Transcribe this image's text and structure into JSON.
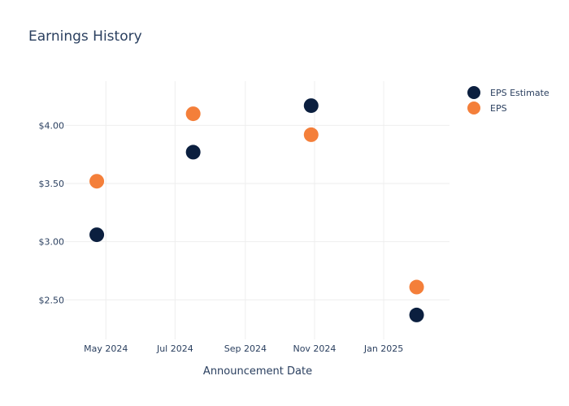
{
  "chart_data": {
    "type": "scatter",
    "title": "Earnings History",
    "xlabel": "Announcement Date",
    "ylabel": "",
    "x_ticks": [
      {
        "date": "2024-05-01",
        "label": "May 2024"
      },
      {
        "date": "2024-07-01",
        "label": "Jul 2024"
      },
      {
        "date": "2024-09-01",
        "label": "Sep 2024"
      },
      {
        "date": "2024-11-01",
        "label": "Nov 2024"
      },
      {
        "date": "2025-01-01",
        "label": "Jan 2025"
      }
    ],
    "y_ticks": [
      {
        "value": 2.5,
        "label": "$2.50"
      },
      {
        "value": 3.0,
        "label": "$3.00"
      },
      {
        "value": 3.5,
        "label": "$3.50"
      },
      {
        "value": 4.0,
        "label": "$4.00"
      }
    ],
    "xlim": [
      "2024-03-26",
      "2025-02-28"
    ],
    "ylim": [
      2.16,
      4.38
    ],
    "grid": true,
    "legend_position": "top-right",
    "series": [
      {
        "name": "EPS Estimate",
        "color": "#0b1f3f",
        "points": [
          {
            "x": "2024-04-23",
            "y": 3.06
          },
          {
            "x": "2024-07-17",
            "y": 3.77
          },
          {
            "x": "2024-10-29",
            "y": 4.17
          },
          {
            "x": "2025-01-30",
            "y": 2.37
          }
        ]
      },
      {
        "name": "EPS",
        "color": "#f47f3a",
        "points": [
          {
            "x": "2024-04-23",
            "y": 3.52
          },
          {
            "x": "2024-07-17",
            "y": 4.1
          },
          {
            "x": "2024-10-29",
            "y": 3.92
          },
          {
            "x": "2025-01-30",
            "y": 2.61
          }
        ]
      }
    ]
  }
}
